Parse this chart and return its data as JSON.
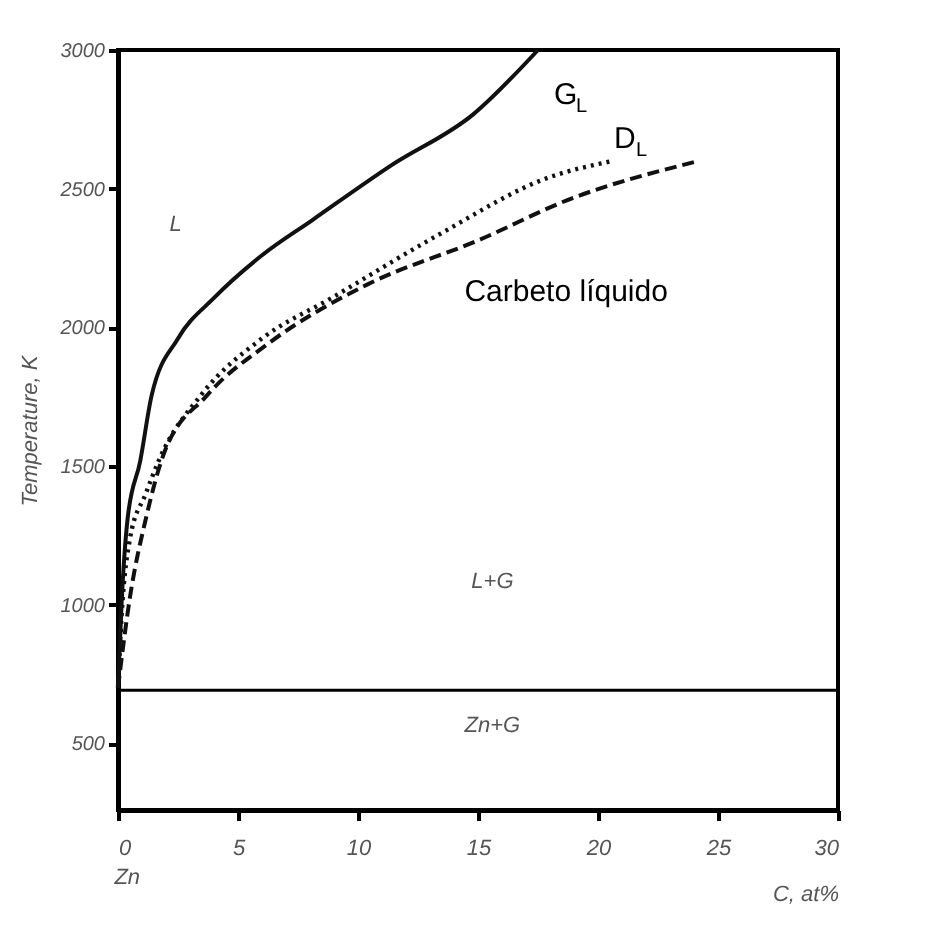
{
  "chart_data": {
    "type": "line",
    "xlabel": "C, at%",
    "ylabel": "Temperature, K",
    "xlim": [
      0,
      30
    ],
    "xticks": [
      0,
      5,
      10,
      15,
      20,
      25,
      30
    ],
    "ylim": [
      260,
      3000
    ],
    "yticks": [
      500,
      1000,
      1500,
      2000,
      2500,
      3000
    ],
    "grid": false,
    "marker": "none",
    "series": [
      {
        "name": "G$_{L}$",
        "color": "#111111",
        "line_style": "solid",
        "x": [
          0,
          0.15,
          0.4,
          0.93,
          1.4,
          2.5,
          4.0,
          6.0,
          8.1,
          11.4,
          14.8,
          17.5
        ],
        "values": [
          700,
          1007,
          1310,
          1520,
          1754,
          1960,
          2106,
          2260,
          2387,
          2585,
          2768,
          3000
        ]
      },
      {
        "name": "D$_{L}$",
        "color": "#111111",
        "line_style": "dotted",
        "x": [
          0,
          0.15,
          0.5,
          1.16,
          1.7,
          3.5,
          6.0,
          8.9,
          13.3,
          18.0,
          20.5
        ],
        "values": [
          700,
          960,
          1239,
          1401,
          1520,
          1760,
          1960,
          2106,
          2331,
          2542,
          2598
        ]
      },
      {
        "name": "Carbeto líquido",
        "color": "#111111",
        "line_style": "dashed",
        "x": [
          0,
          0.5,
          1.16,
          1.9,
          3.7,
          6.3,
          10.4,
          15.1,
          18.7,
          24.1
        ],
        "values": [
          700,
          1028,
          1310,
          1542,
          1754,
          1944,
          2155,
          2317,
          2458,
          2598
        ]
      }
    ],
    "ref_lines": [
      {
        "axis": "y",
        "value": 692,
        "label": null
      }
    ],
    "annotations": [
      "L",
      "L+G",
      "Zn+G",
      "Zn"
    ]
  }
}
